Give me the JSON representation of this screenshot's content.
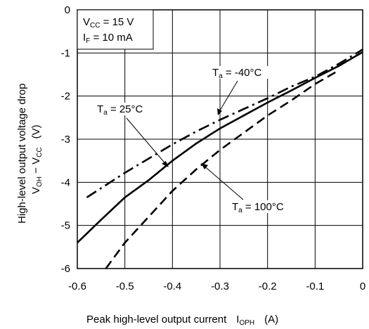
{
  "chart_data": {
    "type": "line",
    "xlabel": {
      "main": "Peak high-level output current",
      "sym": "I",
      "sub": "OPH",
      "unit": "(A)"
    },
    "ylabel": {
      "line1": "High-level output voltage drop",
      "line2": {
        "a": "V",
        "a_sub": "OH",
        "mid": " − V",
        "b_sub": "CC",
        "unit": "(V)"
      }
    },
    "xlim": [
      -0.6,
      0
    ],
    "ylim": [
      -6,
      0
    ],
    "x_ticks": [
      {
        "v": -0.6,
        "label": "-0.6"
      },
      {
        "v": -0.5,
        "label": "-0.5"
      },
      {
        "v": -0.4,
        "label": "-0.4"
      },
      {
        "v": -0.3,
        "label": "-0.3"
      },
      {
        "v": -0.2,
        "label": "-0.2"
      },
      {
        "v": -0.1,
        "label": "-0.1"
      },
      {
        "v": 0,
        "label": "0"
      }
    ],
    "y_ticks": [
      {
        "v": 0,
        "label": "0"
      },
      {
        "v": -1,
        "label": "-1"
      },
      {
        "v": -2,
        "label": "-2"
      },
      {
        "v": -3,
        "label": "-3"
      },
      {
        "v": -4,
        "label": "-4"
      },
      {
        "v": -5,
        "label": "-5"
      },
      {
        "v": -6,
        "label": "-6"
      }
    ],
    "grid": true,
    "conditions": [
      {
        "sym": "V",
        "sub": "CC",
        "rest": " = 15 V"
      },
      {
        "sym": "I",
        "sub": "F",
        "rest": " = 10 mA"
      }
    ],
    "series": [
      {
        "name": "Ta = -40°C",
        "style": "dash-dot",
        "x": [
          -0.58,
          -0.5,
          -0.45,
          -0.4,
          -0.35,
          -0.3,
          -0.25,
          -0.2,
          -0.15,
          -0.1,
          -0.05,
          0
        ],
        "y": [
          -4.35,
          -3.78,
          -3.45,
          -3.12,
          -2.82,
          -2.55,
          -2.3,
          -2.05,
          -1.78,
          -1.55,
          -1.25,
          -0.92
        ]
      },
      {
        "name": "Ta = 25°C",
        "style": "solid",
        "x": [
          -0.6,
          -0.55,
          -0.5,
          -0.45,
          -0.4,
          -0.35,
          -0.3,
          -0.25,
          -0.2,
          -0.15,
          -0.1,
          -0.05,
          0
        ],
        "y": [
          -5.4,
          -4.87,
          -4.35,
          -3.95,
          -3.5,
          -3.1,
          -2.75,
          -2.45,
          -2.15,
          -1.87,
          -1.58,
          -1.3,
          -0.98
        ]
      },
      {
        "name": "Ta = 100°C",
        "style": "dashed",
        "x": [
          -0.54,
          -0.5,
          -0.45,
          -0.4,
          -0.35,
          -0.3,
          -0.25,
          -0.2,
          -0.15,
          -0.1,
          -0.05
        ],
        "y": [
          -6.0,
          -5.4,
          -4.8,
          -4.2,
          -3.7,
          -3.25,
          -2.85,
          -2.45,
          -2.1,
          -1.72,
          -1.4
        ]
      }
    ],
    "annotations": [
      {
        "sym": "T",
        "sub": "a",
        "rest": " = -40°C"
      },
      {
        "sym": "T",
        "sub": "a",
        "rest": " = 25°C"
      },
      {
        "sym": "T",
        "sub": "a",
        "rest": " = 100°C"
      }
    ]
  }
}
